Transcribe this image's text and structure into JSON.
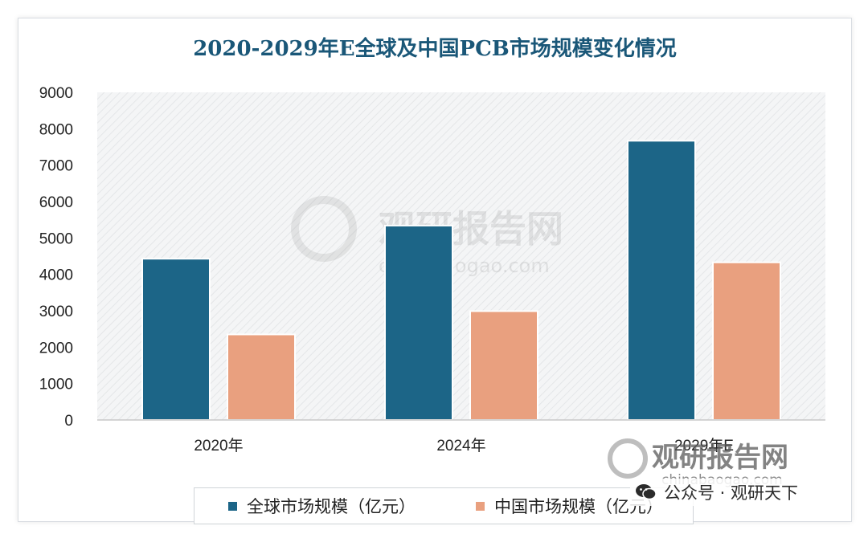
{
  "chart_data": {
    "type": "bar",
    "title": "2020-2029年E全球及中国PCB市场规模变化情况",
    "categories": [
      "2020年",
      "2024年",
      "2029年E"
    ],
    "series": [
      {
        "name": "全球市场规模（亿元）",
        "values": [
          4430,
          5340,
          7670
        ],
        "color": "#1c6587"
      },
      {
        "name": "中国市场规模（亿元）",
        "values": [
          2350,
          2990,
          4330
        ],
        "color": "#e9a07f"
      }
    ],
    "ylim": [
      0,
      9000
    ],
    "yticks": [
      "0",
      "1000",
      "2000",
      "3000",
      "4000",
      "5000",
      "6000",
      "7000",
      "8000",
      "9000"
    ],
    "grid": false,
    "legend_position": "bottom",
    "title_color": "#1a5778"
  },
  "watermark": {
    "brand": "观研报告网",
    "url": "chinabaogao.com"
  },
  "footer": {
    "text": "公众号 · 观研天下"
  }
}
